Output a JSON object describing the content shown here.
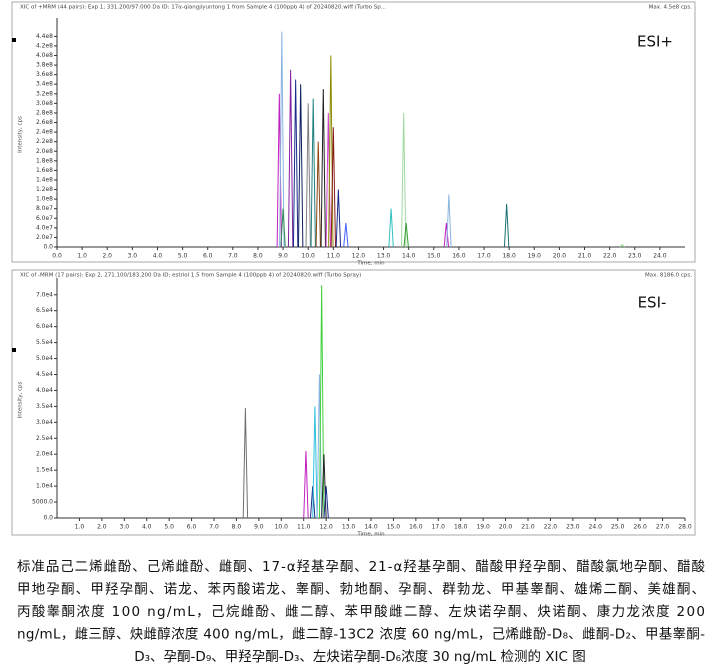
{
  "chart_data": [
    {
      "type": "chromatogram",
      "header": "XIC of +MRM (44 pairs): Exp 1, 331.200/97.000 Da ID: 17α-qiangjiyuntong 1 from Sample 4 (100ppb 4) of 20240820.wiff (Turbo Sp...",
      "max_label": "Max. 4.5e8 cps.",
      "annotation": "ESI+",
      "xlabel": "Time, min",
      "ylabel": "Intensity, cps",
      "xlim": [
        0,
        25
      ],
      "ylim": [
        0,
        470000000.0
      ],
      "xticks": [
        {
          "value": 0,
          "label": "0.0"
        },
        {
          "value": 1,
          "label": "1.0"
        },
        {
          "value": 2,
          "label": "2.0"
        },
        {
          "value": 3,
          "label": "3.0"
        },
        {
          "value": 4,
          "label": "4.0"
        },
        {
          "value": 5,
          "label": "5.0"
        },
        {
          "value": 6,
          "label": "6.0"
        },
        {
          "value": 7,
          "label": "7.0"
        },
        {
          "value": 8,
          "label": "8.0"
        },
        {
          "value": 9,
          "label": "9.0"
        },
        {
          "value": 10,
          "label": "10.0"
        },
        {
          "value": 11,
          "label": "11.0"
        },
        {
          "value": 12,
          "label": "12.0"
        },
        {
          "value": 13,
          "label": "13.0"
        },
        {
          "value": 14,
          "label": "14.0"
        },
        {
          "value": 15,
          "label": "15.0"
        },
        {
          "value": 16,
          "label": "16.0"
        },
        {
          "value": 17,
          "label": "17.0"
        },
        {
          "value": 18,
          "label": "18.0"
        },
        {
          "value": 19,
          "label": "19.0"
        },
        {
          "value": 20,
          "label": "20.0"
        },
        {
          "value": 21,
          "label": "21.0"
        },
        {
          "value": 22,
          "label": "22.0"
        },
        {
          "value": 23,
          "label": "23.0"
        },
        {
          "value": 24,
          "label": "24.0"
        }
      ],
      "yticks": [
        {
          "value": 0,
          "label": "0.0"
        },
        {
          "value": 20000000.0,
          "label": "2.0e7"
        },
        {
          "value": 40000000.0,
          "label": "4.0e7"
        },
        {
          "value": 60000000.0,
          "label": "6.0e7"
        },
        {
          "value": 80000000.0,
          "label": "8.0e7"
        },
        {
          "value": 100000000.0,
          "label": "1.0e8"
        },
        {
          "value": 120000000.0,
          "label": "1.2e8"
        },
        {
          "value": 140000000.0,
          "label": "1.4e8"
        },
        {
          "value": 160000000.0,
          "label": "1.6e8"
        },
        {
          "value": 180000000.0,
          "label": "1.8e8"
        },
        {
          "value": 200000000.0,
          "label": "2.0e8"
        },
        {
          "value": 220000000.0,
          "label": "2.2e8"
        },
        {
          "value": 240000000.0,
          "label": "2.4e8"
        },
        {
          "value": 260000000.0,
          "label": "2.6e8"
        },
        {
          "value": 280000000.0,
          "label": "2.8e8"
        },
        {
          "value": 300000000.0,
          "label": "3.0e8"
        },
        {
          "value": 320000000.0,
          "label": "3.2e8"
        },
        {
          "value": 340000000.0,
          "label": "3.4e8"
        },
        {
          "value": 360000000.0,
          "label": "3.6e8"
        },
        {
          "value": 380000000.0,
          "label": "3.8e8"
        },
        {
          "value": 400000000.0,
          "label": "4.0e8"
        },
        {
          "value": 420000000.0,
          "label": "4.2e8"
        },
        {
          "value": 440000000.0,
          "label": "4.4e8"
        }
      ],
      "x": [
        8.85,
        8.95,
        9.0,
        9.3,
        9.5,
        9.7,
        10.0,
        10.2,
        10.4,
        10.6,
        10.8,
        10.9,
        11.0,
        11.2,
        11.5,
        13.3,
        13.8,
        13.9,
        15.5,
        15.6,
        17.9,
        22.5
      ],
      "values": [
        320000000.0,
        450000000.0,
        80000000.0,
        370000000.0,
        350000000.0,
        340000000.0,
        300000000.0,
        310000000.0,
        220000000.0,
        330000000.0,
        280000000.0,
        400000000.0,
        250000000.0,
        120000000.0,
        50000000.0,
        80000000.0,
        280000000.0,
        50000000.0,
        50000000.0,
        110000000.0,
        90000000.0,
        5000000.0
      ],
      "colors": [
        "#c020c0",
        "#8ab4e0",
        "#2e8b57",
        "#8020a0",
        "#1a2a8a",
        "#102060",
        "#808080",
        "#208080",
        "#8b4513",
        "#202020",
        "#d040d0",
        "#8b8b00",
        "#8b1a1a",
        "#1a2a8a",
        "#4060ff",
        "#30c0c0",
        "#a0d8a0",
        "#30a030",
        "#c020c0",
        "#8ab4e0",
        "#1a7070",
        "#90e090"
      ]
    },
    {
      "type": "chromatogram",
      "header": "XIC of -MRM (17 pairs): Exp 2, 271.100/183.200 Da ID: estriol 1.5 from Sample 4 (100ppb 4) of 20240820.wiff (Turbo Spray)",
      "max_label": "Max. 8186.0 cps.",
      "annotation": "ESI-",
      "xlabel": "Time, min",
      "ylabel": "Intensity, cps",
      "xlim": [
        0,
        28
      ],
      "ylim": [
        0,
        74000.0
      ],
      "xticks": [
        {
          "value": 1,
          "label": "1.0"
        },
        {
          "value": 2,
          "label": "2.0"
        },
        {
          "value": 3,
          "label": "3.0"
        },
        {
          "value": 4,
          "label": "4.0"
        },
        {
          "value": 5,
          "label": "5.0"
        },
        {
          "value": 6,
          "label": "6.0"
        },
        {
          "value": 7,
          "label": "7.0"
        },
        {
          "value": 8,
          "label": "8.0"
        },
        {
          "value": 9,
          "label": "9.0"
        },
        {
          "value": 10,
          "label": "10.0"
        },
        {
          "value": 11,
          "label": "11.0"
        },
        {
          "value": 12,
          "label": "12.0"
        },
        {
          "value": 13,
          "label": "13.0"
        },
        {
          "value": 14,
          "label": "14.0"
        },
        {
          "value": 15,
          "label": "15.0"
        },
        {
          "value": 16,
          "label": "16.0"
        },
        {
          "value": 17,
          "label": "17.0"
        },
        {
          "value": 18,
          "label": "18.0"
        },
        {
          "value": 19,
          "label": "19.0"
        },
        {
          "value": 20,
          "label": "20.0"
        },
        {
          "value": 21,
          "label": "21.0"
        },
        {
          "value": 22,
          "label": "22.0"
        },
        {
          "value": 23,
          "label": "23.0"
        },
        {
          "value": 24,
          "label": "24.0"
        },
        {
          "value": 25,
          "label": "25.0"
        },
        {
          "value": 26,
          "label": "26.0"
        },
        {
          "value": 27,
          "label": "27.0"
        },
        {
          "value": 28,
          "label": "28.0"
        }
      ],
      "yticks": [
        {
          "value": 0,
          "label": "0.0"
        },
        {
          "value": 5000,
          "label": "5000.0"
        },
        {
          "value": 10000.0,
          "label": "1.0e4"
        },
        {
          "value": 15000.0,
          "label": "1.5e4"
        },
        {
          "value": 20000.0,
          "label": "2.0e4"
        },
        {
          "value": 25000.0,
          "label": "2.5e4"
        },
        {
          "value": 30000.0,
          "label": "3.0e4"
        },
        {
          "value": 35000.0,
          "label": "3.5e4"
        },
        {
          "value": 40000.0,
          "label": "4.0e4"
        },
        {
          "value": 45000.0,
          "label": "4.5e4"
        },
        {
          "value": 50000.0,
          "label": "5.0e4"
        },
        {
          "value": 55000.0,
          "label": "5.5e4"
        },
        {
          "value": 60000.0,
          "label": "6.0e4"
        },
        {
          "value": 65000.0,
          "label": "6.5e4"
        },
        {
          "value": 70000.0,
          "label": "7.0e4"
        }
      ],
      "x": [
        8.4,
        11.1,
        11.4,
        11.5,
        11.7,
        11.8,
        11.9,
        12.0
      ],
      "values": [
        34500.0,
        21000.0,
        10000.0,
        35000.0,
        45000.0,
        73000.0,
        20000.0,
        10000.0
      ],
      "colors": [
        "#707070",
        "#c020c0",
        "#1a2a8a",
        "#30c0e0",
        "#8ab4e0",
        "#40d040",
        "#202020",
        "#1a2a8a"
      ]
    }
  ],
  "caption": {
    "lines": [
      "标准品己二烯雌酚、己烯雌酚、雌酮、17-α羟基孕酮、21-α羟基孕酮、醋酸甲羟孕酮、醋酸氯地孕酮、醋酸",
      "甲地孕酮、甲羟孕酮、诺龙、苯丙酸诺龙、睾酮、勃地酮、孕酮、群勃龙、甲基睾酮、雄烯二酮、美雄酮、",
      "丙酸睾酮浓度 100 ng/mL，己烷雌酚、雌二醇、苯甲酸雌二醇、左炔诺孕酮、炔诺酮、康力龙浓度 200",
      "ng/mL，雌三醇、炔雌醇浓度 400 ng/mL，雌二醇-13C2 浓度 60 ng/mL，己烯雌酚-D₈、雌酮-D₂、甲基睾酮-",
      "D₃、孕酮-D₉、甲羟孕酮-D₃、左炔诺孕酮-D₆浓度 30 ng/mL 检测的 XIC 图"
    ]
  }
}
